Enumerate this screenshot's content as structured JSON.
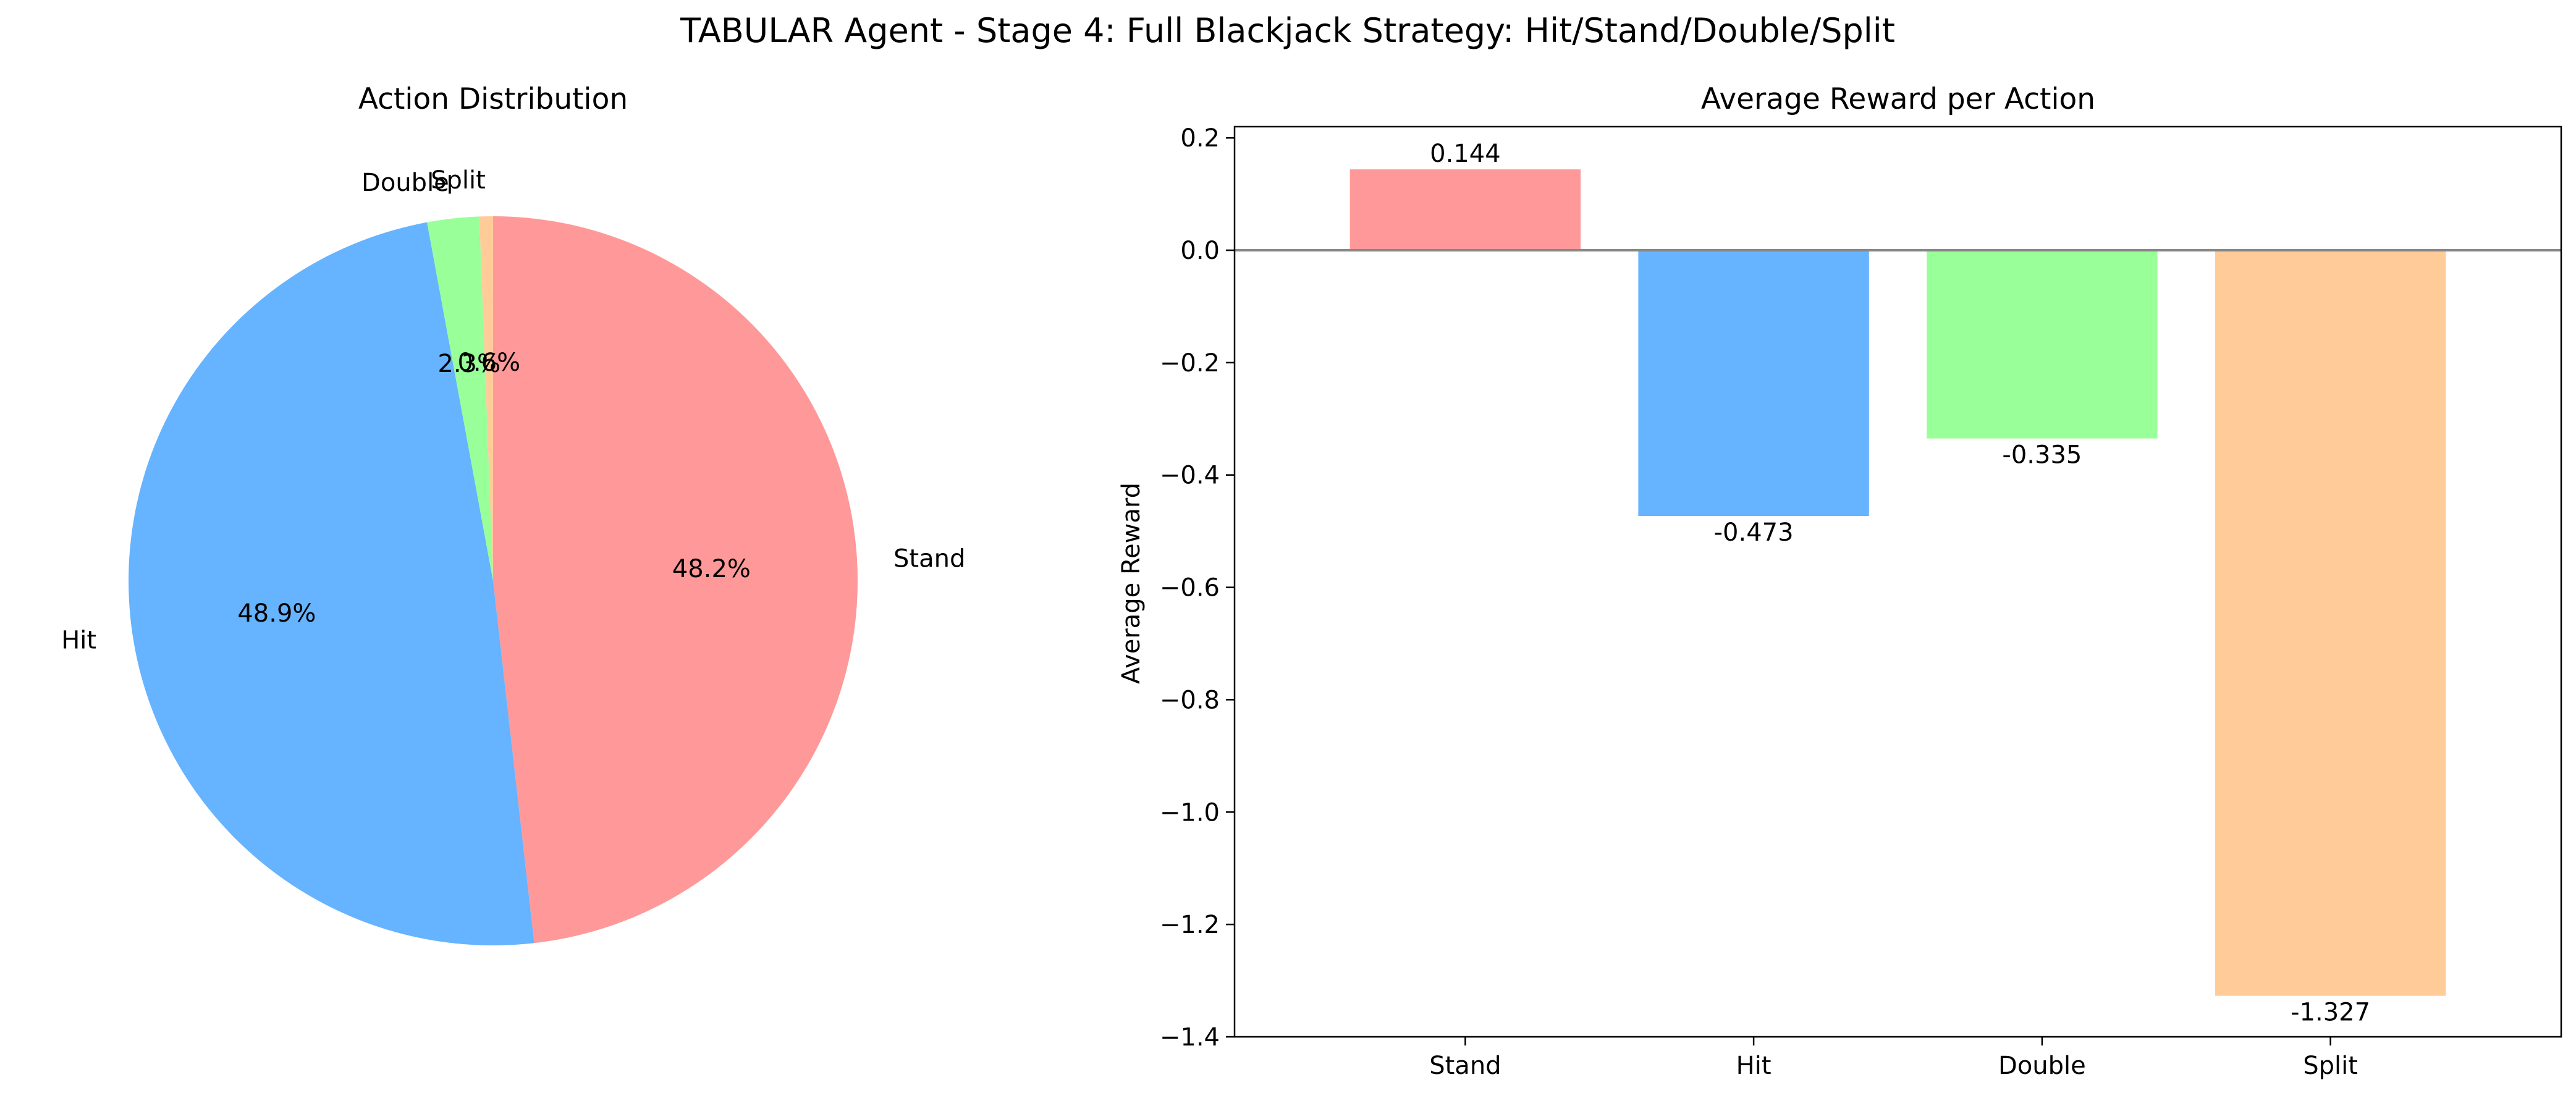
{
  "figure": {
    "suptitle": "TABULAR Agent - Stage 4: Full Blackjack Strategy: Hit/Stand/Double/Split"
  },
  "chart_data": [
    {
      "type": "pie",
      "title": "Action Distribution",
      "start_angle": 90,
      "direction": "clockwise",
      "slices": [
        {
          "label": "Stand",
          "value": 48.2,
          "pct_label": "48.2%",
          "color": "#ff9999"
        },
        {
          "label": "Hit",
          "value": 48.9,
          "pct_label": "48.9%",
          "color": "#66b3ff"
        },
        {
          "label": "Double",
          "value": 2.3,
          "pct_label": "2.3%",
          "color": "#99ff99"
        },
        {
          "label": "Split",
          "value": 0.6,
          "pct_label": "0.6%",
          "color": "#ffcc99"
        }
      ]
    },
    {
      "type": "bar",
      "title": "Average Reward per Action",
      "xlabel": "",
      "ylabel": "Average Reward",
      "categories": [
        "Stand",
        "Hit",
        "Double",
        "Split"
      ],
      "values": [
        0.144,
        -0.473,
        -0.335,
        -1.327
      ],
      "value_labels": [
        "0.144",
        "-0.473",
        "-0.335",
        "-1.327"
      ],
      "colors": [
        "#ff9999",
        "#66b3ff",
        "#99ff99",
        "#ffcc99"
      ],
      "ylim": [
        -1.4,
        0.22
      ],
      "yticks": [
        0.2,
        0.0,
        -0.2,
        -0.4,
        -0.6,
        -0.8,
        -1.0,
        -1.2,
        -1.4
      ],
      "ytick_labels": [
        "0.2",
        "0.0",
        "−0.2",
        "−0.4",
        "−0.6",
        "−0.8",
        "−1.0",
        "−1.2",
        "−1.4"
      ],
      "zero_line": true,
      "grid": false
    }
  ]
}
